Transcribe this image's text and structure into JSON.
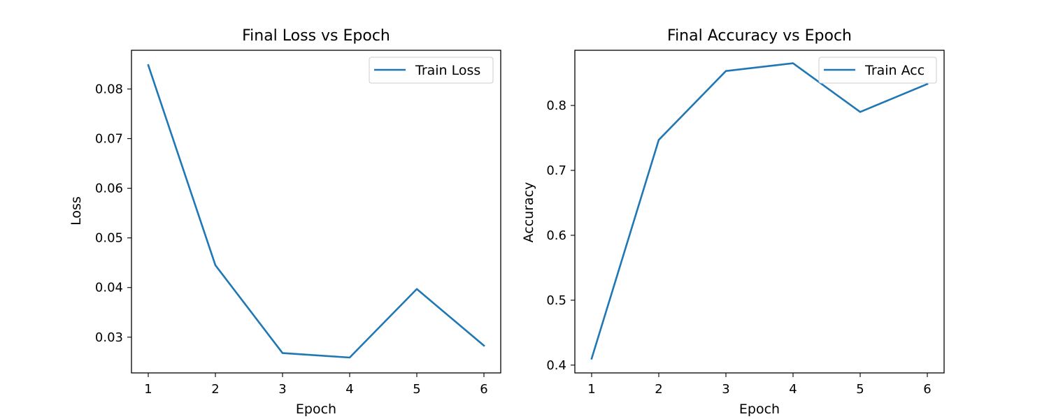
{
  "chart_data": [
    {
      "type": "line",
      "title": "Final Loss vs Epoch",
      "xlabel": "Epoch",
      "ylabel": "Loss",
      "x": [
        1,
        2,
        3,
        4,
        5,
        6
      ],
      "xticks": [
        1,
        2,
        3,
        4,
        5,
        6
      ],
      "xtick_labels": [
        "1",
        "2",
        "3",
        "4",
        "5",
        "6"
      ],
      "xlim": [
        0.75,
        6.25
      ],
      "yticks": [
        0.03,
        0.04,
        0.05,
        0.06,
        0.07,
        0.08
      ],
      "ytick_labels": [
        "0.03",
        "0.04",
        "0.05",
        "0.06",
        "0.07",
        "0.08"
      ],
      "ylim": [
        0.0228,
        0.0878
      ],
      "series": [
        {
          "name": "Train Loss",
          "color": "#1f77b4",
          "values": [
            0.0848,
            0.0445,
            0.0268,
            0.0259,
            0.0397,
            0.0283
          ]
        }
      ],
      "legend_position": "top-right",
      "grid": false
    },
    {
      "type": "line",
      "title": "Final Accuracy vs Epoch",
      "xlabel": "Epoch",
      "ylabel": "Accuracy",
      "x": [
        1,
        2,
        3,
        4,
        5,
        6
      ],
      "xticks": [
        1,
        2,
        3,
        4,
        5,
        6
      ],
      "xtick_labels": [
        "1",
        "2",
        "3",
        "4",
        "5",
        "6"
      ],
      "xlim": [
        0.75,
        6.25
      ],
      "yticks": [
        0.4,
        0.5,
        0.6,
        0.7,
        0.8
      ],
      "ytick_labels": [
        "0.4",
        "0.5",
        "0.6",
        "0.7",
        "0.8"
      ],
      "ylim": [
        0.388,
        0.885
      ],
      "series": [
        {
          "name": "Train Acc",
          "color": "#1f77b4",
          "values": [
            0.41,
            0.747,
            0.853,
            0.865,
            0.79,
            0.833
          ]
        }
      ],
      "legend_position": "top-right",
      "grid": false
    }
  ]
}
